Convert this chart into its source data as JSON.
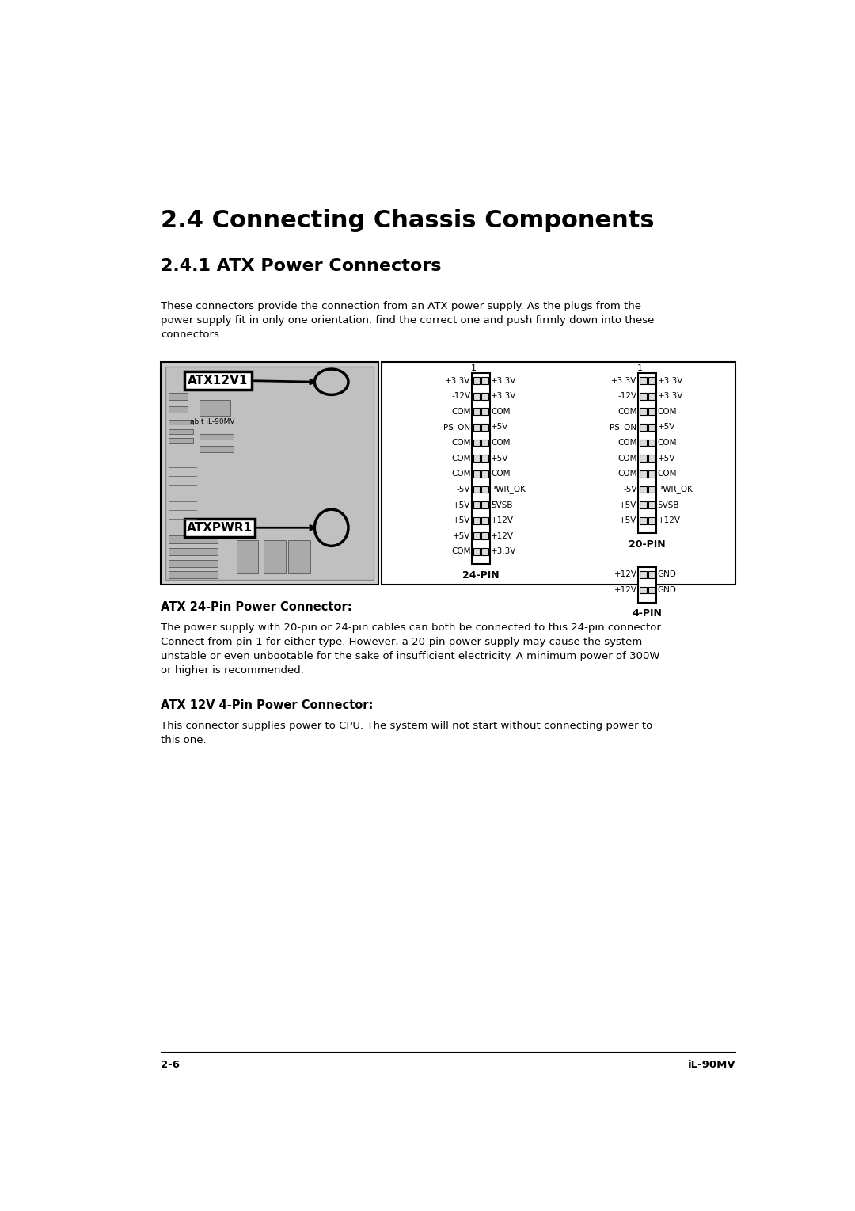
{
  "title_main": "2.4 Connecting Chassis Components",
  "title_sub": "2.4.1 ATX Power Connectors",
  "body_text": "These connectors provide the connection from an ATX power supply. As the plugs from the\npower supply fit in only one orientation, find the correct one and push firmly down into these\nconnectors.",
  "section1_header": "ATX 24-Pin Power Connector:",
  "section1_body": "The power supply with 20-pin or 24-pin cables can both be connected to this 24-pin connector.\nConnect from pin-1 for either type. However, a 20-pin power supply may cause the system\nunstable or even unbootable for the sake of insufficient electricity. A minimum power of 300W\nor higher is recommended.",
  "section2_header": "ATX 12V 4-Pin Power Connector:",
  "section2_body": "This connector supplies power to CPU. The system will not start without connecting power to\nthis one.",
  "footer_left": "2-6",
  "footer_right": "iL-90MV",
  "pin24_left": [
    "+3.3V",
    "-12V",
    "COM",
    "PS_ON",
    "COM",
    "COM",
    "COM",
    "-5V",
    "+5V",
    "+5V",
    "+5V",
    "COM"
  ],
  "pin24_right": [
    "+3.3V",
    "+3.3V",
    "COM",
    "+5V",
    "COM",
    "+5V",
    "COM",
    "PWR_OK",
    "5VSB",
    "+12V",
    "+12V",
    "+3.3V"
  ],
  "pin20_left": [
    "+3.3V",
    "-12V",
    "COM",
    "PS_ON",
    "COM",
    "COM",
    "COM",
    "-5V",
    "+5V",
    "+5V"
  ],
  "pin20_right": [
    "+3.3V",
    "+3.3V",
    "COM",
    "+5V",
    "COM",
    "+5V",
    "COM",
    "PWR_OK",
    "5VSB",
    "+12V"
  ],
  "pin4_left": [
    "+12V",
    "+12V"
  ],
  "pin4_right": [
    "GND",
    "GND"
  ],
  "bg_color": "#ffffff",
  "text_color": "#000000",
  "page_width": 10.8,
  "page_height": 15.29
}
